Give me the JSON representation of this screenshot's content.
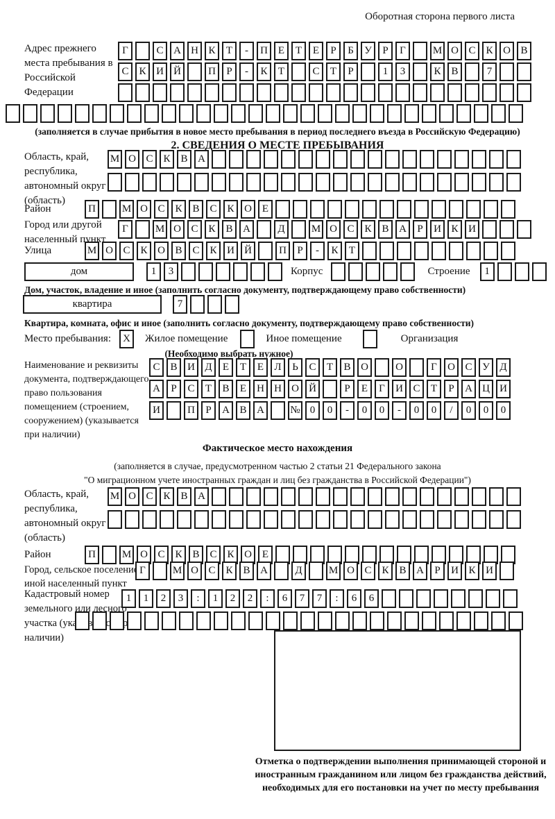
{
  "header": {
    "title": "Оборотная сторона первого листа"
  },
  "prev_address": {
    "label": "Адрес прежнего места пребывания в Российской Федерации",
    "rows": [
      [
        "Г",
        "",
        "С",
        "А",
        "Н",
        "К",
        "Т",
        "-",
        "П",
        "Е",
        "Т",
        "Е",
        "Р",
        "Б",
        "У",
        "Р",
        "Г",
        "",
        "М",
        "О",
        "С",
        "К",
        "О",
        "В"
      ],
      [
        "С",
        "К",
        "И",
        "Й",
        "",
        "П",
        "Р",
        "-",
        "К",
        "Т",
        "",
        "С",
        "Т",
        "Р",
        "",
        "1",
        "3",
        "",
        "К",
        "В",
        "",
        "7",
        "",
        ""
      ],
      [
        "",
        "",
        "",
        "",
        "",
        "",
        "",
        "",
        "",
        "",
        "",
        "",
        "",
        "",
        "",
        "",
        "",
        "",
        "",
        "",
        "",
        "",
        "",
        ""
      ]
    ],
    "row_full": [
      "",
      "",
      "",
      "",
      "",
      "",
      "",
      "",
      "",
      "",
      "",
      "",
      "",
      "",
      "",
      "",
      "",
      "",
      "",
      "",
      "",
      "",
      "",
      "",
      "",
      "",
      "",
      "",
      "",
      ""
    ],
    "note": "(заполняется в случае прибытия в новое место пребывания в период последнего въезда в Российскую Федерацию)"
  },
  "s2": {
    "title": "2. СВЕДЕНИЯ О МЕСТЕ ПРЕБЫВАНИЯ",
    "oblast": {
      "label": "Область, край, республика, автономный округ (область)",
      "rows": [
        [
          "М",
          "О",
          "С",
          "К",
          "В",
          "А",
          "",
          "",
          "",
          "",
          "",
          "",
          "",
          "",
          "",
          "",
          "",
          "",
          "",
          "",
          "",
          "",
          "",
          ""
        ],
        [
          "",
          "",
          "",
          "",
          "",
          "",
          "",
          "",
          "",
          "",
          "",
          "",
          "",
          "",
          "",
          "",
          "",
          "",
          "",
          "",
          "",
          "",
          "",
          ""
        ]
      ]
    },
    "raion": {
      "label": "Район",
      "cells": [
        "П",
        "",
        "М",
        "О",
        "С",
        "К",
        "В",
        "С",
        "К",
        "О",
        "Е",
        "",
        "",
        "",
        "",
        "",
        "",
        "",
        "",
        "",
        "",
        "",
        "",
        "",
        ""
      ]
    },
    "gorod": {
      "label": "Город или другой населенный пункт",
      "cells": [
        "Г",
        "",
        "М",
        "О",
        "С",
        "К",
        "В",
        "А",
        "",
        "Д",
        "",
        "М",
        "О",
        "С",
        "К",
        "В",
        "А",
        "Р",
        "И",
        "К",
        "И",
        "",
        "",
        ""
      ]
    },
    "ulitsa": {
      "label": "Улица",
      "cells": [
        "М",
        "О",
        "С",
        "К",
        "О",
        "В",
        "С",
        "К",
        "И",
        "Й",
        "",
        "П",
        "Р",
        "-",
        "К",
        "Т",
        "",
        "",
        "",
        "",
        "",
        "",
        "",
        "",
        ""
      ]
    },
    "dom": {
      "box_label": "дом",
      "cells": [
        "1",
        "3",
        "",
        "",
        "",
        "",
        "",
        ""
      ],
      "korpus_label": "Корпус",
      "korpus_cells": [
        "",
        "",
        "",
        "",
        ""
      ],
      "stroenie_label": "Строение",
      "stroenie_cells": [
        "1",
        "",
        "",
        ""
      ]
    },
    "dom_caption": "Дом, участок, владение и иное (заполнить согласно документу, подтверждающему право собственности)",
    "kvartira": {
      "box_label": "квартира",
      "cells": [
        "7",
        "",
        "",
        ""
      ]
    },
    "kvartira_caption": "Квартира, комната, офис и иное (заполнить согласно документу, подтверждающему право собственности)",
    "mesto": {
      "label": "Место пребывания:",
      "options": [
        {
          "label": "Жилое помещение",
          "checked": "X"
        },
        {
          "label": "Иное помещение",
          "checked": ""
        },
        {
          "label": "Организация",
          "checked": ""
        }
      ],
      "note": "(Необходимо выбрать нужное)"
    },
    "doc": {
      "label": "Наименование и реквизиты документа, подтверждающего право пользования помещением (строением, сооружением) (указывается при наличии)",
      "rows": [
        [
          "С",
          "В",
          "И",
          "Д",
          "Е",
          "Т",
          "Е",
          "Л",
          "Ь",
          "С",
          "Т",
          "В",
          "О",
          "",
          "О",
          "",
          "Г",
          "О",
          "С",
          "У",
          "Д"
        ],
        [
          "А",
          "Р",
          "С",
          "Т",
          "В",
          "Е",
          "Н",
          "Н",
          "О",
          "Й",
          "",
          "Р",
          "Е",
          "Г",
          "И",
          "С",
          "Т",
          "Р",
          "А",
          "Ц",
          "И"
        ],
        [
          "И",
          "",
          "П",
          "Р",
          "А",
          "В",
          "А",
          "",
          "№",
          "0",
          "0",
          "-",
          "0",
          "0",
          "-",
          "0",
          "0",
          "/",
          "0",
          "0",
          "0"
        ]
      ]
    }
  },
  "fact": {
    "title": "Фактическое место нахождения",
    "note1": "(заполняется в случае, предусмотренном частью 2 статьи 21 Федерального закона",
    "note2": "\"О миграционном учете иностранных граждан и лиц без гражданства в Российской Федерации\")",
    "oblast": {
      "label": "Область, край, республика, автономный округ (область)",
      "rows": [
        [
          "М",
          "О",
          "С",
          "К",
          "В",
          "А",
          "",
          "",
          "",
          "",
          "",
          "",
          "",
          "",
          "",
          "",
          "",
          "",
          "",
          "",
          "",
          "",
          "",
          ""
        ],
        [
          "",
          "",
          "",
          "",
          "",
          "",
          "",
          "",
          "",
          "",
          "",
          "",
          "",
          "",
          "",
          "",
          "",
          "",
          "",
          "",
          "",
          "",
          "",
          ""
        ]
      ]
    },
    "raion": {
      "label": "Район",
      "cells": [
        "П",
        "",
        "М",
        "О",
        "С",
        "К",
        "В",
        "С",
        "К",
        "О",
        "Е",
        "",
        "",
        "",
        "",
        "",
        "",
        "",
        "",
        "",
        "",
        "",
        "",
        "",
        ""
      ]
    },
    "gorod": {
      "label": "Город, сельское поселение, иной населенный пункт",
      "cells": [
        "Г",
        "",
        "М",
        "О",
        "С",
        "К",
        "В",
        "А",
        "",
        "Д",
        "",
        "М",
        "О",
        "С",
        "К",
        "В",
        "А",
        "Р",
        "И",
        "К",
        "И",
        ""
      ]
    },
    "kadastr": {
      "label": "Кадастровый номер земельного или лесного участка (указывается при наличии)",
      "rows": [
        [
          "1",
          "1",
          "2",
          "3",
          ":",
          "1",
          "2",
          "2",
          ":",
          "6",
          "7",
          "7",
          ":",
          "6",
          "6",
          "",
          "",
          "",
          "",
          "",
          "",
          "",
          ""
        ],
        [
          "",
          "",
          "",
          "",
          "",
          "",
          "",
          "",
          "",
          "",
          "",
          "",
          "",
          "",
          "",
          "",
          "",
          "",
          "",
          "",
          "",
          "",
          "",
          "",
          "",
          ""
        ]
      ]
    },
    "stamp_caption": "Отметка о подтверждении выполнения принимающей стороной и иностранным гражданином или лицом без гражданства действий, необходимых для его постановки на учет по месту пребывания"
  }
}
